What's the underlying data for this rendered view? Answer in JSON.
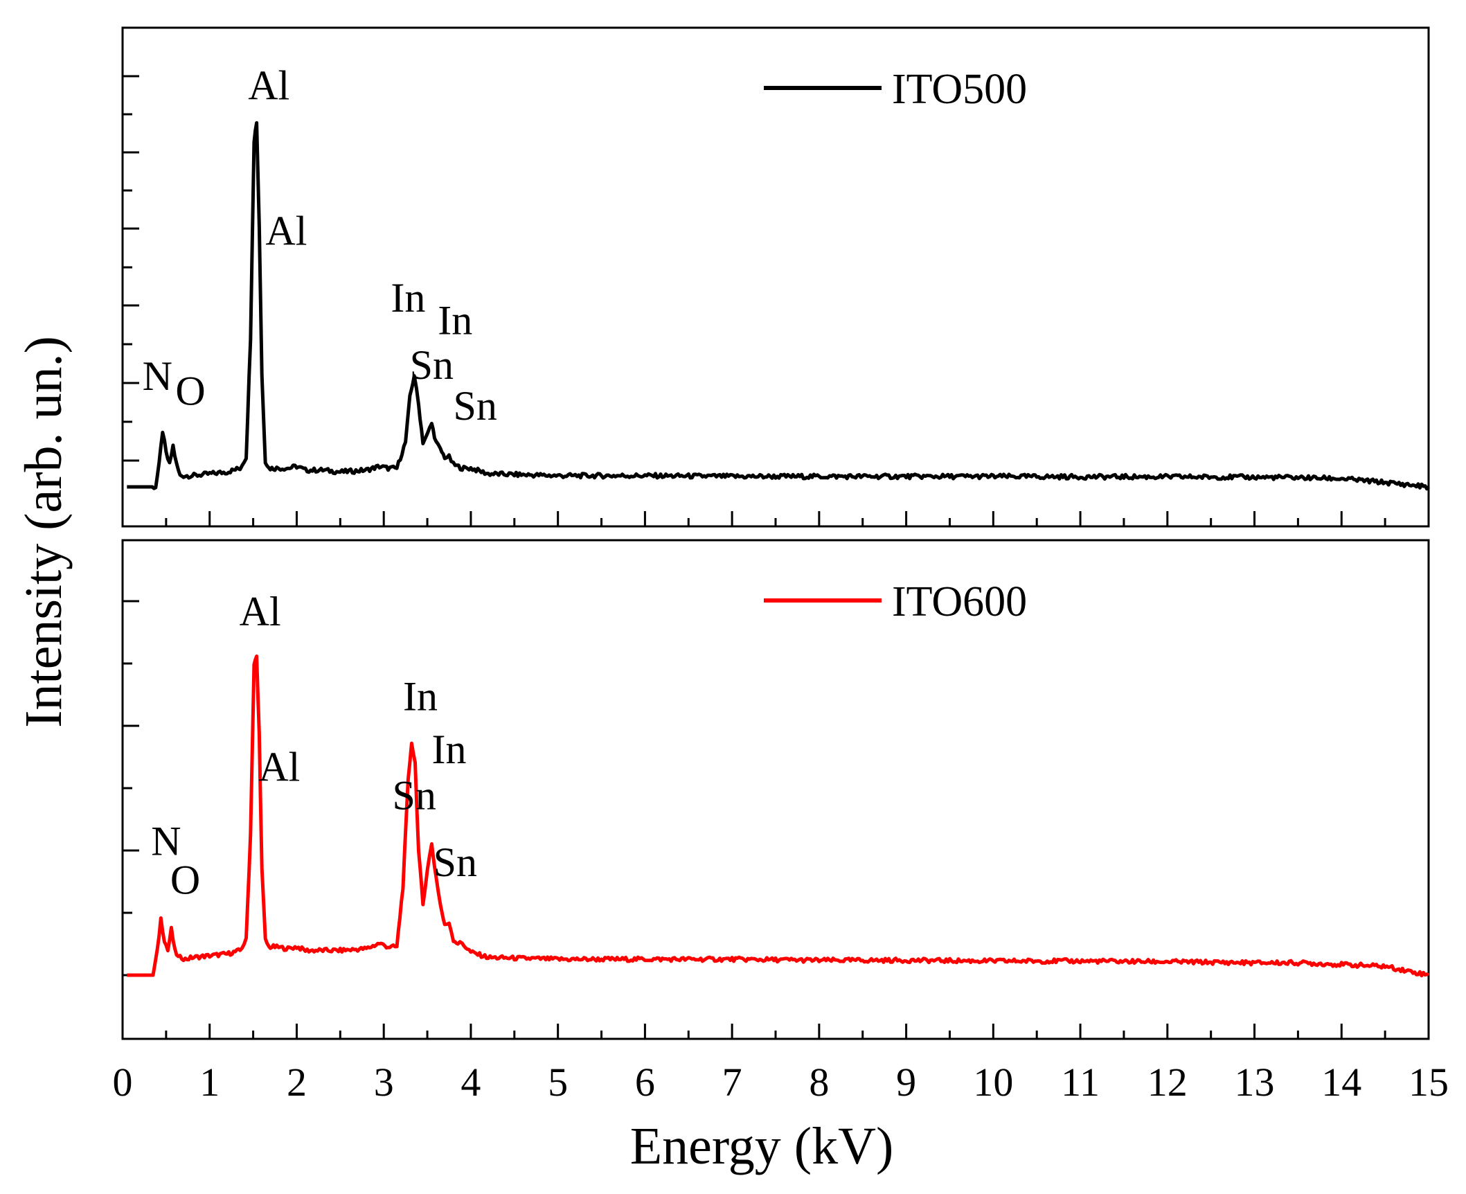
{
  "chart_data": [
    {
      "type": "line",
      "panel": "top",
      "x_range": [
        0,
        15
      ],
      "xlabel": "Energy (kV)",
      "ylabel": "Intensity (arb. un.)",
      "y_tick_labels_shown": false,
      "grid": false,
      "legend_position": "top-right",
      "series": [
        {
          "name": "ITO500",
          "color": "#000000",
          "x": [
            0.05,
            0.38,
            0.42,
            0.46,
            0.5,
            0.54,
            0.58,
            0.62,
            0.66,
            0.7,
            0.8,
            1.0,
            1.2,
            1.35,
            1.42,
            1.47,
            1.51,
            1.54,
            1.57,
            1.6,
            1.64,
            1.68,
            1.75,
            1.9,
            2.0,
            2.1,
            2.3,
            2.5,
            2.8,
            2.95,
            3.05,
            3.15,
            3.25,
            3.3,
            3.35,
            3.4,
            3.45,
            3.5,
            3.55,
            3.6,
            3.65,
            3.7,
            3.75,
            3.8,
            3.9,
            4.0,
            4.2,
            5.0,
            6.0,
            7.0,
            8.0,
            9.0,
            10.0,
            11.0,
            12.0,
            13.0,
            13.5,
            14.0,
            14.5,
            15.0
          ],
          "y": [
            0.0,
            0.0,
            0.06,
            0.15,
            0.09,
            0.06,
            0.11,
            0.06,
            0.03,
            0.03,
            0.03,
            0.035,
            0.04,
            0.05,
            0.08,
            0.4,
            0.93,
            0.98,
            0.7,
            0.3,
            0.07,
            0.05,
            0.05,
            0.05,
            0.055,
            0.045,
            0.045,
            0.04,
            0.045,
            0.055,
            0.05,
            0.05,
            0.12,
            0.24,
            0.3,
            0.22,
            0.12,
            0.14,
            0.17,
            0.12,
            0.1,
            0.08,
            0.08,
            0.06,
            0.05,
            0.05,
            0.035,
            0.03,
            0.03,
            0.028,
            0.028,
            0.028,
            0.028,
            0.027,
            0.027,
            0.026,
            0.025,
            0.022,
            0.012,
            0.0
          ]
        }
      ],
      "annotations": [
        {
          "text": "Al",
          "x": 1.68,
          "y": 1.04
        },
        {
          "text": "Al",
          "x": 1.88,
          "y": 0.65
        },
        {
          "text": "N",
          "x": 0.4,
          "y": 0.26
        },
        {
          "text": "O",
          "x": 0.78,
          "y": 0.22
        },
        {
          "text": "In",
          "x": 3.28,
          "y": 0.47
        },
        {
          "text": "In",
          "x": 3.82,
          "y": 0.41
        },
        {
          "text": "Sn",
          "x": 3.55,
          "y": 0.29
        },
        {
          "text": "Sn",
          "x": 4.05,
          "y": 0.18
        }
      ]
    },
    {
      "type": "line",
      "panel": "bottom",
      "x_range": [
        0,
        15
      ],
      "xlabel": "Energy (kV)",
      "ylabel": "Intensity (arb. un.)",
      "y_tick_labels_shown": false,
      "grid": false,
      "legend_position": "top-right",
      "series": [
        {
          "name": "ITO600",
          "color": "#ff0000",
          "x": [
            0.05,
            0.35,
            0.4,
            0.44,
            0.48,
            0.52,
            0.56,
            0.6,
            0.64,
            0.68,
            0.72,
            0.8,
            1.0,
            1.2,
            1.35,
            1.42,
            1.47,
            1.51,
            1.54,
            1.57,
            1.6,
            1.64,
            1.68,
            1.75,
            1.9,
            2.0,
            2.1,
            2.3,
            2.5,
            2.8,
            2.95,
            3.05,
            3.15,
            3.22,
            3.28,
            3.32,
            3.36,
            3.4,
            3.45,
            3.5,
            3.55,
            3.6,
            3.65,
            3.7,
            3.75,
            3.8,
            3.85,
            3.9,
            4.0,
            4.2,
            5.0,
            6.0,
            7.0,
            8.0,
            9.0,
            10.0,
            11.0,
            12.0,
            13.0,
            13.5,
            14.0,
            14.5,
            15.0
          ],
          "y": [
            0.0,
            0.0,
            0.07,
            0.16,
            0.1,
            0.07,
            0.13,
            0.07,
            0.05,
            0.05,
            0.045,
            0.05,
            0.055,
            0.06,
            0.07,
            0.1,
            0.4,
            0.88,
            0.9,
            0.68,
            0.3,
            0.1,
            0.08,
            0.08,
            0.075,
            0.08,
            0.07,
            0.07,
            0.07,
            0.075,
            0.09,
            0.08,
            0.08,
            0.25,
            0.55,
            0.66,
            0.6,
            0.35,
            0.2,
            0.3,
            0.37,
            0.28,
            0.2,
            0.14,
            0.15,
            0.1,
            0.09,
            0.09,
            0.065,
            0.05,
            0.045,
            0.045,
            0.045,
            0.042,
            0.042,
            0.04,
            0.04,
            0.038,
            0.035,
            0.035,
            0.03,
            0.025,
            0.0
          ]
        }
      ],
      "annotations": [
        {
          "text": "Al",
          "x": 1.58,
          "y": 0.99
        },
        {
          "text": "Al",
          "x": 1.8,
          "y": 0.55
        },
        {
          "text": "N",
          "x": 0.5,
          "y": 0.34
        },
        {
          "text": "O",
          "x": 0.72,
          "y": 0.23
        },
        {
          "text": "In",
          "x": 3.42,
          "y": 0.75
        },
        {
          "text": "In",
          "x": 3.75,
          "y": 0.6
        },
        {
          "text": "Sn",
          "x": 3.35,
          "y": 0.47
        },
        {
          "text": "Sn",
          "x": 3.82,
          "y": 0.28
        }
      ]
    }
  ],
  "x_ticks": [
    "0",
    "1",
    "2",
    "3",
    "4",
    "5",
    "6",
    "7",
    "8",
    "9",
    "10",
    "11",
    "12",
    "13",
    "14",
    "15"
  ]
}
